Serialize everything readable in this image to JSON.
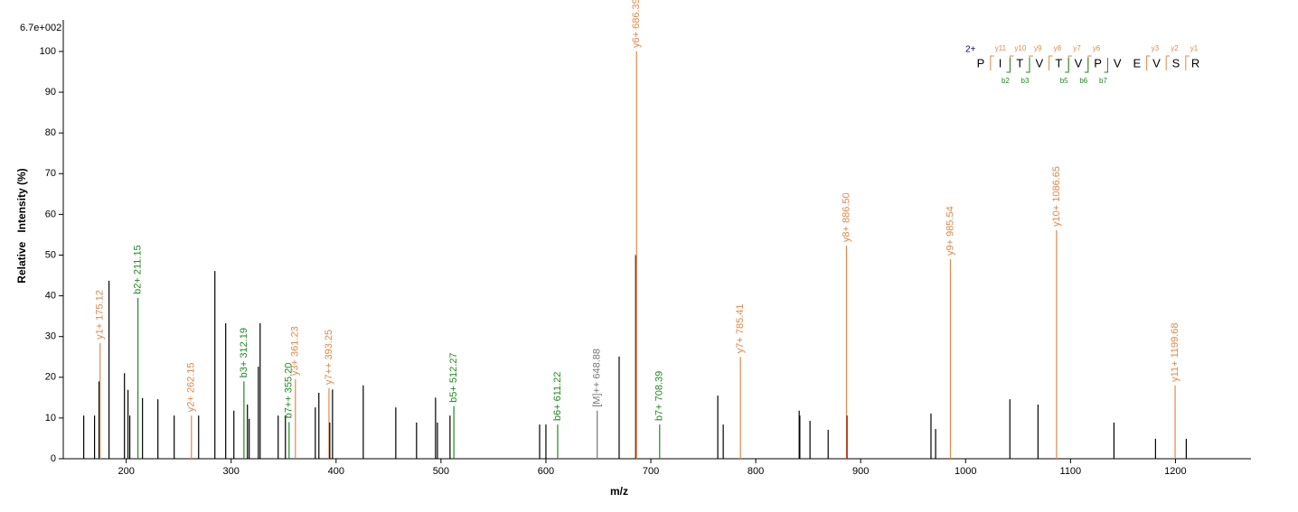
{
  "chart_data": {
    "type": "stem",
    "max_intensity_label": "6.7e+002",
    "x_label": "m/z",
    "y_label": "Relative   Intensity (%)",
    "xlim": [
      140,
      1272
    ],
    "ylim": [
      0,
      100
    ],
    "xticks": [
      200,
      300,
      400,
      500,
      600,
      700,
      800,
      900,
      1000,
      1100,
      1200
    ],
    "yticks": [
      0,
      10,
      20,
      30,
      40,
      50,
      60,
      70,
      80,
      90,
      100
    ],
    "x": [
      159.5,
      169.8,
      174.1,
      175.12,
      183.6,
      198.3,
      201.7,
      203.4,
      211.15,
      215.5,
      230.2,
      245.7,
      262.15,
      269,
      284.5,
      294.8,
      302.6,
      312.19,
      315.5,
      317.2,
      325.9,
      327.6,
      344.8,
      351.7,
      355.2,
      361.23,
      380.2,
      383.6,
      393.25,
      394,
      396.6,
      425.9,
      456.9,
      476.7,
      494.8,
      496.6,
      508.6,
      512.27,
      594,
      600,
      611.22,
      648.88,
      669.8,
      685.5,
      686.39,
      708.39,
      763.8,
      769,
      785.41,
      841.4,
      842,
      851.7,
      869,
      886.5,
      887,
      967,
      971.4,
      985.54,
      1042.2,
      1069,
      1086.65,
      1141.4,
      1181,
      1199.68,
      1210.3
    ],
    "values": [
      10.6,
      10.6,
      19,
      28.4,
      43.7,
      21,
      16.9,
      10.6,
      39.5,
      14.9,
      14.6,
      10.6,
      10.6,
      10.6,
      46.1,
      33.3,
      11.8,
      19,
      13.3,
      9.8,
      22.6,
      33.3,
      10.6,
      10.6,
      9,
      19.5,
      12.6,
      16.2,
      17.3,
      8.9,
      17,
      18,
      12.6,
      8.9,
      15,
      8.9,
      10.6,
      12.9,
      8.4,
      8.4,
      8.4,
      11.8,
      25.1,
      50,
      100,
      8.4,
      15.5,
      8.4,
      25,
      11.8,
      10.6,
      9.3,
      7.1,
      52.3,
      10.6,
      11.1,
      7.3,
      49,
      14.6,
      13.3,
      56.1,
      8.9,
      4.9,
      18,
      4.9
    ],
    "peak_labels": [
      null,
      null,
      null,
      "y1+ 175.12",
      null,
      null,
      null,
      null,
      "b2+ 211.15",
      null,
      null,
      null,
      "y2+ 262.15",
      null,
      null,
      null,
      null,
      "b3+ 312.19",
      null,
      null,
      null,
      null,
      null,
      null,
      "b7++ 355.20",
      "y3+ 361.23",
      null,
      null,
      "y7++ 393.25",
      null,
      null,
      null,
      null,
      null,
      null,
      null,
      null,
      "b5+ 512.27",
      null,
      null,
      "b6+ 611.22",
      "[M]++ 648.88",
      null,
      null,
      "y6+ 686.39",
      "b7+ 708.39",
      null,
      null,
      "y7+ 785.41",
      null,
      null,
      null,
      null,
      "y8+ 886.50",
      null,
      null,
      null,
      "y9+ 985.54",
      null,
      null,
      "y10+ 1086.65",
      null,
      null,
      "y11+ 1199.68",
      null
    ],
    "colors": [
      "#000000",
      "#000000",
      "#000000",
      "#e0884a",
      "#000000",
      "#000000",
      "#000000",
      "#000000",
      "#1f8a1f",
      "#000000",
      "#000000",
      "#000000",
      "#e0884a",
      "#000000",
      "#000000",
      "#000000",
      "#000000",
      "#1f8a1f",
      "#000000",
      "#000000",
      "#000000",
      "#000000",
      "#000000",
      "#000000",
      "#1f8a1f",
      "#e0884a",
      "#000000",
      "#000000",
      "#e0884a",
      "#000000",
      "#000000",
      "#000000",
      "#000000",
      "#000000",
      "#000000",
      "#000000",
      "#000000",
      "#1f8a1f",
      "#000000",
      "#000000",
      "#1f8a1f",
      "#777777",
      "#000000",
      "#6b0000",
      "#e0884a",
      "#1f8a1f",
      "#000000",
      "#000000",
      "#e0884a",
      "#000000",
      "#000000",
      "#000000",
      "#000000",
      "#e0884a",
      "#8b0000",
      "#000000",
      "#000000",
      "#e0884a",
      "#000000",
      "#000000",
      "#e0884a",
      "#000000",
      "#000000",
      "#e0884a",
      "#000000"
    ],
    "sequence": {
      "charge": "2+",
      "residues": [
        "P",
        "I",
        "T",
        "V",
        "T",
        "V",
        "P",
        "V",
        "E",
        "V",
        "S",
        "R"
      ],
      "y_ions": [
        "y11",
        "y10",
        "y9",
        "y8",
        "y7",
        "y6",
        "y3",
        "y2",
        "y1"
      ],
      "b_ions": [
        "b2",
        "b3",
        "b5",
        "b6",
        "b7"
      ]
    }
  }
}
